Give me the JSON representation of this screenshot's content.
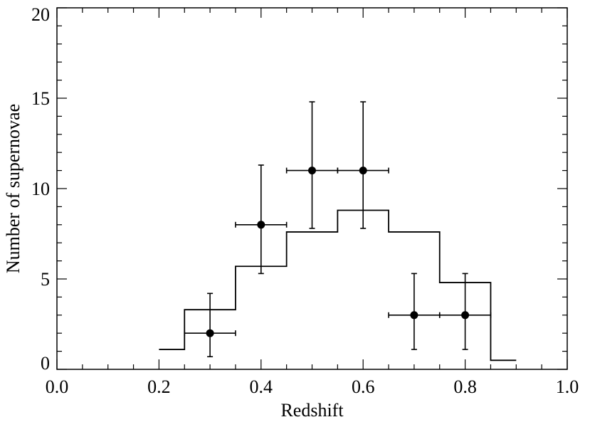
{
  "chart_data": {
    "type": "scatter",
    "title": "",
    "xlabel": "Redshift",
    "ylabel": "Number of supernovae",
    "xlim": [
      0.0,
      1.0
    ],
    "ylim": [
      0,
      20
    ],
    "grid": false,
    "x_ticks": [
      0.0,
      0.2,
      0.4,
      0.6,
      0.8,
      1.0
    ],
    "x_tick_labels": [
      "0.0",
      "0.2",
      "0.4",
      "0.6",
      "0.8",
      "1.0"
    ],
    "y_ticks": [
      0,
      5,
      10,
      15,
      20
    ],
    "y_tick_labels": [
      "0",
      "5",
      "10",
      "15",
      "20"
    ],
    "x_minor_step": 0.05,
    "y_minor_step": 1,
    "series": [
      {
        "kind": "points_with_errors",
        "marker": "filled-circle",
        "color": "#000000",
        "points": [
          {
            "x": 0.3,
            "y": 2,
            "xerr": 0.05,
            "yerr_low": 1.3,
            "yerr_high": 2.2
          },
          {
            "x": 0.4,
            "y": 8,
            "xerr": 0.05,
            "yerr_low": 2.7,
            "yerr_high": 3.3
          },
          {
            "x": 0.5,
            "y": 11,
            "xerr": 0.05,
            "yerr_low": 3.2,
            "yerr_high": 3.8
          },
          {
            "x": 0.6,
            "y": 11,
            "xerr": 0.05,
            "yerr_low": 3.2,
            "yerr_high": 3.8
          },
          {
            "x": 0.7,
            "y": 3,
            "xerr": 0.05,
            "yerr_low": 1.9,
            "yerr_high": 2.3
          },
          {
            "x": 0.8,
            "y": 3,
            "xerr": 0.05,
            "yerr_low": 1.9,
            "yerr_high": 2.3
          }
        ]
      },
      {
        "kind": "step-histogram",
        "color": "#000000",
        "bins": [
          {
            "x0": 0.2,
            "x1": 0.25,
            "y": 1.1
          },
          {
            "x0": 0.25,
            "x1": 0.35,
            "y": 3.3
          },
          {
            "x0": 0.35,
            "x1": 0.45,
            "y": 5.7
          },
          {
            "x0": 0.45,
            "x1": 0.55,
            "y": 7.6
          },
          {
            "x0": 0.55,
            "x1": 0.65,
            "y": 8.8
          },
          {
            "x0": 0.65,
            "x1": 0.75,
            "y": 7.6
          },
          {
            "x0": 0.75,
            "x1": 0.85,
            "y": 4.8
          },
          {
            "x0": 0.85,
            "x1": 0.9,
            "y": 0.5
          }
        ]
      }
    ]
  }
}
